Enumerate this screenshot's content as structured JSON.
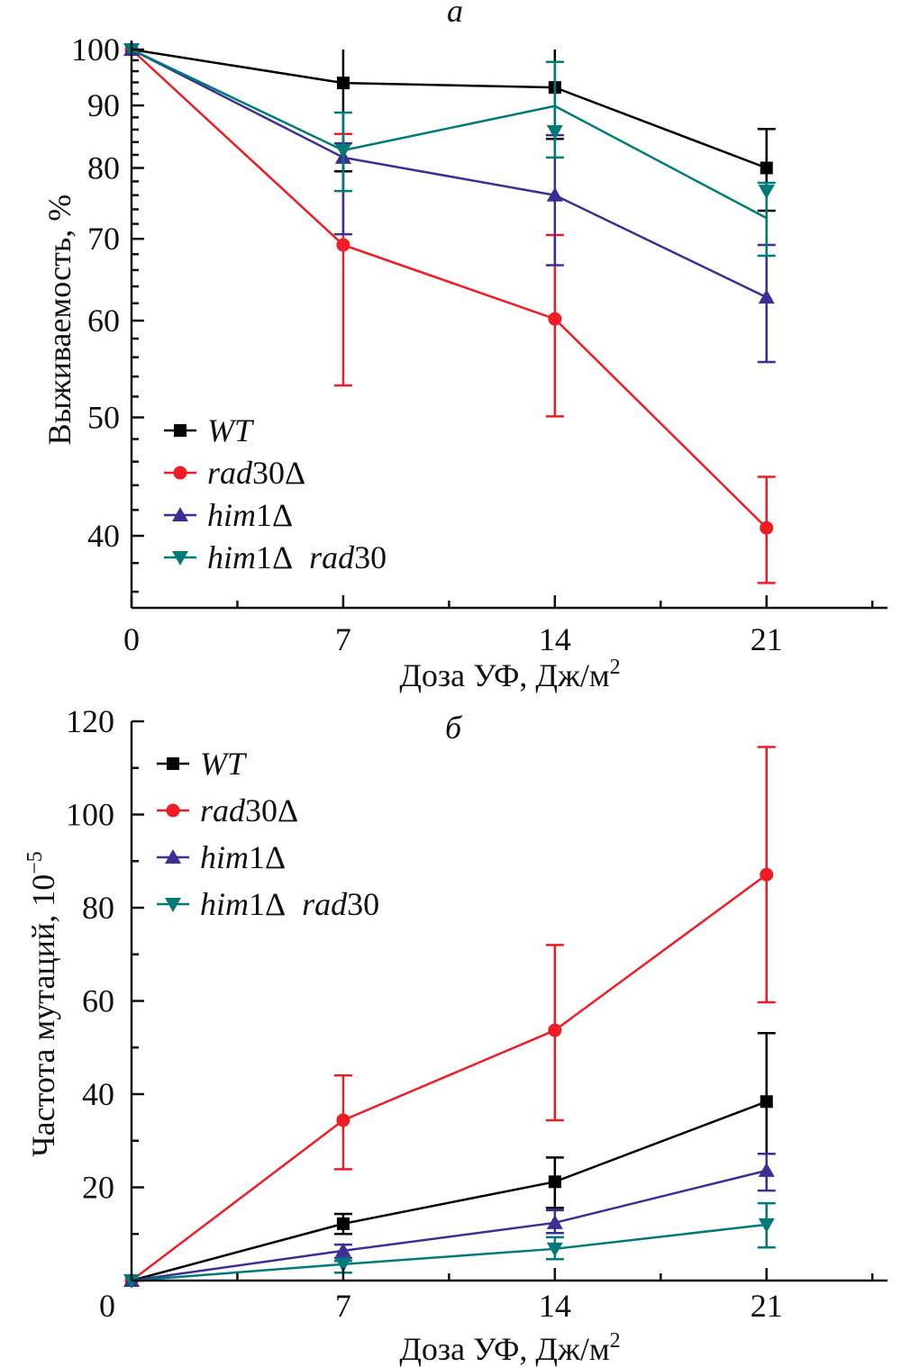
{
  "figure": {
    "colors": {
      "WT": "#000000",
      "rad30": "#ee1c25",
      "him1": "#3c2f94",
      "him1rad30": "#007a78"
    }
  },
  "chart_data": [
    {
      "id": "a",
      "type": "line",
      "panel_label": "а",
      "title": "",
      "xlabel": "Доза УФ, Дж/м",
      "xlabel_superscript": "2",
      "ylabel": "Выживаемость, %",
      "yscale": "log",
      "xlim": [
        0,
        25
      ],
      "ylim": [
        35,
        100
      ],
      "x_ticks": [
        0,
        7,
        14,
        21
      ],
      "x_tick_labels": [
        "0",
        "7",
        "14",
        "21"
      ],
      "x_minor_ticks": [
        3.5,
        10.5,
        17.5,
        24.5
      ],
      "y_ticks": [
        40,
        50,
        60,
        70,
        80,
        90,
        100
      ],
      "y_tick_labels": [
        "40",
        "50",
        "60",
        "70",
        "80",
        "90",
        "100"
      ],
      "y_minor_ticks": [
        36,
        38,
        42,
        44,
        46,
        48,
        52,
        54,
        56,
        58,
        62,
        64,
        66,
        68,
        72,
        74,
        76,
        78,
        82,
        84,
        86,
        88,
        92,
        94,
        96,
        98
      ],
      "grid": false,
      "legend_position": "bottom-left",
      "x": [
        0,
        7,
        14,
        21
      ],
      "series": [
        {
          "key": "WT",
          "name": "WT",
          "name_italic": "WT",
          "name_suffix": "",
          "marker": "square",
          "values": [
            100,
            93.9,
            93.1,
            80.0
          ],
          "line_values": [
            100,
            93.9,
            93.1,
            80.0
          ],
          "err_low": [
            100,
            79.5,
            84.5,
            73.8
          ],
          "err_high": [
            100,
            100,
            100,
            86.1
          ]
        },
        {
          "key": "rad30",
          "name": "rad30Δ",
          "name_italic": "rad",
          "name_suffix": "30Δ",
          "marker": "circle",
          "values": [
            100,
            69.2,
            60.2,
            40.6
          ],
          "line_values": [
            100,
            69.2,
            60.2,
            40.6
          ],
          "err_low": [
            100,
            53.1,
            50.1,
            36.6
          ],
          "err_high": [
            100,
            85.3,
            70.5,
            44.7
          ]
        },
        {
          "key": "him1",
          "name": "him1Δ",
          "name_italic": "him",
          "name_suffix": "1Δ",
          "marker": "triangle-up",
          "values": [
            100,
            81.6,
            76.0,
            62.7
          ],
          "line_values": [
            100,
            81.6,
            76.0,
            62.7
          ],
          "err_low": [
            100,
            70.6,
            66.6,
            55.5
          ],
          "err_high": [
            100,
            83.8,
            85.1,
            69.2
          ]
        },
        {
          "key": "him1rad30",
          "name": "him1Δ rad30",
          "name_italic": "him",
          "name_suffix": "1Δ",
          "name_italic2": "rad",
          "name_suffix2": "30",
          "marker": "triangle-down",
          "values": [
            100,
            82.7,
            85.7,
            76.6
          ],
          "line_values": [
            100,
            82.7,
            89.9,
            72.8
          ],
          "err_low": [
            100,
            76.6,
            81.6,
            67.8
          ],
          "err_high": [
            100,
            88.8,
            97.7,
            77.8
          ]
        }
      ]
    },
    {
      "id": "b",
      "type": "line",
      "panel_label": "б",
      "title": "",
      "xlabel": "Доза УФ, Дж/м",
      "xlabel_superscript": "2",
      "ylabel": "Частота мутаций, 10",
      "ylabel_superscript": "−5",
      "yscale": "linear",
      "xlim": [
        0,
        25
      ],
      "ylim": [
        0,
        120
      ],
      "x_ticks": [
        7,
        14,
        21
      ],
      "x_tick_labels": [
        "7",
        "14",
        "21"
      ],
      "x_minor_ticks": [
        3.5,
        10.5,
        17.5,
        24.5
      ],
      "y_ticks": [
        0,
        20,
        40,
        60,
        80,
        100,
        120
      ],
      "y_tick_labels": [
        "0",
        "20",
        "40",
        "60",
        "80",
        "100",
        "120"
      ],
      "y_minor_ticks": [
        10,
        30,
        50,
        70,
        90,
        110
      ],
      "grid": false,
      "legend_position": "top-left",
      "x": [
        0,
        7,
        14,
        21
      ],
      "series": [
        {
          "key": "WT",
          "name": "WT",
          "name_italic": "WT",
          "name_suffix": "",
          "marker": "square",
          "values": [
            0,
            12.2,
            21.2,
            38.4
          ],
          "line_values": [
            0,
            12.2,
            21.2,
            38.4
          ],
          "err_low": [
            0,
            10.0,
            15.6,
            27.4
          ],
          "err_high": [
            0,
            14.3,
            26.4,
            53.1
          ]
        },
        {
          "key": "rad30",
          "name": "rad30Δ",
          "name_italic": "rad",
          "name_suffix": "30Δ",
          "marker": "circle",
          "values": [
            0,
            34.4,
            53.7,
            87.1
          ],
          "line_values": [
            0,
            34.4,
            53.7,
            87.1
          ],
          "err_low": [
            0,
            23.9,
            34.4,
            59.7
          ],
          "err_high": [
            0,
            44.0,
            72.0,
            114.5
          ]
        },
        {
          "key": "him1",
          "name": "him1Δ",
          "name_italic": "him",
          "name_suffix": "1Δ",
          "marker": "triangle-up",
          "values": [
            0,
            6.4,
            12.4,
            23.6
          ],
          "line_values": [
            0,
            6.4,
            12.4,
            23.6
          ],
          "err_low": [
            0,
            4.8,
            10.2,
            19.3
          ],
          "err_high": [
            0,
            7.7,
            15.1,
            27.2
          ]
        },
        {
          "key": "him1rad30",
          "name": "him1Δ rad30",
          "name_italic": "him",
          "name_suffix": "1Δ",
          "name_italic2": "rad",
          "name_suffix2": "30",
          "marker": "triangle-down",
          "values": [
            0,
            3.5,
            6.8,
            12.0
          ],
          "line_values": [
            0,
            3.5,
            6.8,
            12.0
          ],
          "err_low": [
            0,
            1.7,
            4.6,
            7.1
          ],
          "err_high": [
            0,
            4.2,
            9.3,
            16.6
          ]
        }
      ]
    }
  ]
}
